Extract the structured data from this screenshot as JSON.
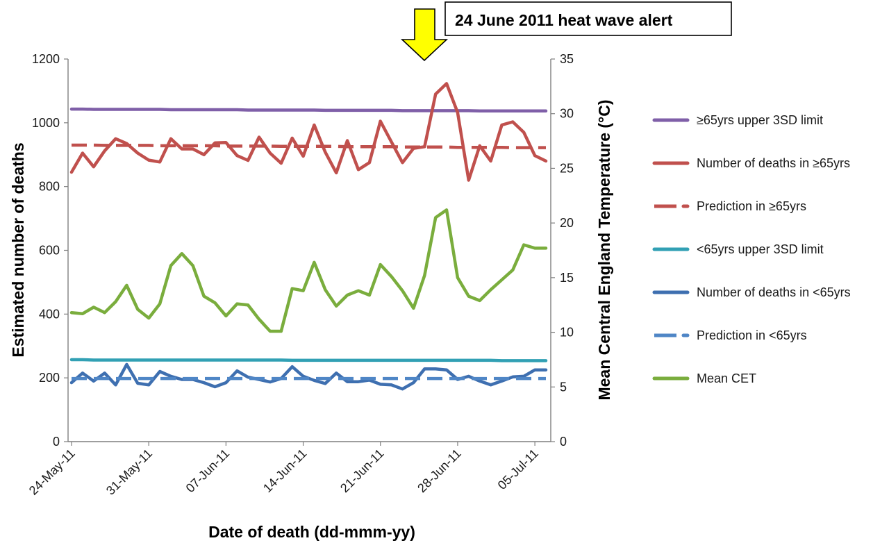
{
  "chart_data": {
    "type": "line",
    "title": "",
    "xlabel": "Date of death (dd-mmm-yy)",
    "ylabel_left": "Estimated number of deaths",
    "ylabel_right": "Mean Central England Temperature (°C)",
    "ylim_left": [
      0,
      1200
    ],
    "ylim_right": [
      0,
      35
    ],
    "yticks_left": [
      "0",
      "200",
      "400",
      "600",
      "800",
      "1000",
      "1200"
    ],
    "yticks_right": [
      "0",
      "5",
      "10",
      "15",
      "20",
      "25",
      "30",
      "35"
    ],
    "x": [
      "24-May-11",
      "25-May-11",
      "26-May-11",
      "27-May-11",
      "28-May-11",
      "29-May-11",
      "30-May-11",
      "31-May-11",
      "01-Jun-11",
      "02-Jun-11",
      "03-Jun-11",
      "04-Jun-11",
      "05-Jun-11",
      "06-Jun-11",
      "07-Jun-11",
      "08-Jun-11",
      "09-Jun-11",
      "10-Jun-11",
      "11-Jun-11",
      "12-Jun-11",
      "13-Jun-11",
      "14-Jun-11",
      "15-Jun-11",
      "16-Jun-11",
      "17-Jun-11",
      "18-Jun-11",
      "19-Jun-11",
      "20-Jun-11",
      "21-Jun-11",
      "22-Jun-11",
      "23-Jun-11",
      "24-Jun-11",
      "25-Jun-11",
      "26-Jun-11",
      "27-Jun-11",
      "28-Jun-11",
      "29-Jun-11",
      "30-Jun-11",
      "01-Jul-11",
      "02-Jul-11",
      "03-Jul-11",
      "04-Jul-11",
      "05-Jul-11",
      "06-Jul-11"
    ],
    "xtick_labels": [
      "24-May-11",
      "31-May-11",
      "07-Jun-11",
      "14-Jun-11",
      "21-Jun-11",
      "28-Jun-11",
      "05-Jul-11"
    ],
    "xtick_index": [
      0,
      7,
      14,
      21,
      28,
      35,
      42
    ],
    "series": [
      {
        "name": "≥65yrs upper 3SD limit",
        "axis": "left",
        "style": "solid",
        "color": "#7f5fa8",
        "values": [
          1043,
          1043,
          1042,
          1042,
          1042,
          1042,
          1042,
          1042,
          1042,
          1041,
          1041,
          1041,
          1041,
          1041,
          1041,
          1041,
          1040,
          1040,
          1040,
          1040,
          1040,
          1040,
          1040,
          1039,
          1039,
          1039,
          1039,
          1039,
          1039,
          1039,
          1038,
          1038,
          1038,
          1038,
          1038,
          1038,
          1038,
          1037,
          1037,
          1037,
          1037,
          1037,
          1037,
          1037
        ]
      },
      {
        "name": "Number of deaths in ≥65yrs",
        "axis": "left",
        "style": "solid",
        "color": "#c0504d",
        "values": [
          845,
          905,
          862,
          912,
          950,
          935,
          905,
          883,
          877,
          950,
          918,
          918,
          900,
          937,
          938,
          897,
          882,
          955,
          905,
          873,
          952,
          895,
          993,
          908,
          843,
          944,
          853,
          875,
          1005,
          940,
          875,
          920,
          925,
          1090,
          1123,
          1032,
          820,
          928,
          880,
          993,
          1003,
          970,
          897,
          880
        ]
      },
      {
        "name": "Prediction in ≥65yrs",
        "axis": "left",
        "style": "dash",
        "color": "#c0504d",
        "values": [
          930,
          930,
          930,
          929,
          929,
          929,
          929,
          929,
          928,
          928,
          928,
          928,
          928,
          928,
          927,
          927,
          927,
          927,
          927,
          926,
          926,
          926,
          926,
          926,
          926,
          925,
          925,
          925,
          925,
          925,
          924,
          924,
          924,
          924,
          924,
          923,
          923,
          923,
          923,
          923,
          922,
          922,
          922,
          922
        ]
      },
      {
        "name": "<65yrs upper 3SD limit",
        "axis": "left",
        "style": "solid",
        "color": "#31a0b4",
        "values": [
          257,
          257,
          256,
          256,
          256,
          256,
          256,
          256,
          256,
          256,
          256,
          256,
          256,
          256,
          256,
          256,
          256,
          256,
          256,
          256,
          255,
          255,
          255,
          255,
          255,
          255,
          255,
          255,
          255,
          255,
          255,
          255,
          255,
          255,
          255,
          255,
          255,
          255,
          255,
          254,
          254,
          254,
          254,
          254
        ]
      },
      {
        "name": "Number of deaths in <65yrs",
        "axis": "left",
        "style": "solid",
        "color": "#3e6fb0",
        "values": [
          185,
          215,
          190,
          215,
          178,
          242,
          183,
          178,
          220,
          205,
          195,
          195,
          185,
          172,
          185,
          222,
          202,
          195,
          187,
          198,
          235,
          205,
          192,
          182,
          215,
          188,
          188,
          193,
          180,
          178,
          165,
          185,
          228,
          228,
          225,
          195,
          205,
          190,
          178,
          190,
          203,
          205,
          225,
          225
        ]
      },
      {
        "name": "Prediction in <65yrs",
        "axis": "left",
        "style": "dash",
        "color": "#4f86c6",
        "values": [
          198,
          198,
          198,
          198,
          198,
          198,
          198,
          198,
          198,
          198,
          198,
          198,
          198,
          198,
          198,
          198,
          198,
          198,
          198,
          198,
          198,
          198,
          198,
          198,
          198,
          198,
          198,
          198,
          198,
          198,
          198,
          198,
          198,
          198,
          198,
          198,
          198,
          198,
          198,
          198,
          198,
          198,
          198,
          198
        ]
      },
      {
        "name": "Mean CET",
        "axis": "right",
        "style": "solid",
        "color": "#7aad3d",
        "values": [
          11.8,
          11.7,
          12.3,
          11.8,
          12.8,
          14.3,
          12.1,
          11.3,
          12.6,
          16.1,
          17.2,
          16.1,
          13.3,
          12.7,
          11.5,
          12.6,
          12.5,
          11.2,
          10.1,
          10.1,
          14.0,
          13.8,
          16.4,
          13.9,
          12.4,
          13.4,
          13.8,
          13.4,
          16.2,
          15.1,
          13.8,
          12.2,
          15.2,
          20.5,
          21.2,
          15.0,
          13.3,
          12.9,
          13.9,
          14.8,
          15.7,
          18.0,
          17.7,
          17.7
        ]
      }
    ],
    "annotation": "24 June 2011 heat wave alert",
    "annotation_x": "24-Jun-11",
    "grid": false,
    "legend_position": "right"
  },
  "legend": [
    {
      "label": "≥65yrs upper 3SD limit",
      "color": "#7f5fa8",
      "style": "solid"
    },
    {
      "label": "Number of deaths in ≥65yrs",
      "color": "#c0504d",
      "style": "solid"
    },
    {
      "label": "Prediction in ≥65yrs",
      "color": "#c0504d",
      "style": "dash"
    },
    {
      "label": "<65yrs upper 3SD limit",
      "color": "#31a0b4",
      "style": "solid"
    },
    {
      "label": "Number of deaths in <65yrs",
      "color": "#3e6fb0",
      "style": "solid"
    },
    {
      "label": "Prediction in <65yrs",
      "color": "#4f86c6",
      "style": "dash"
    },
    {
      "label": "Mean CET",
      "color": "#7aad3d",
      "style": "solid"
    }
  ],
  "arrow_color": "#ffff00"
}
